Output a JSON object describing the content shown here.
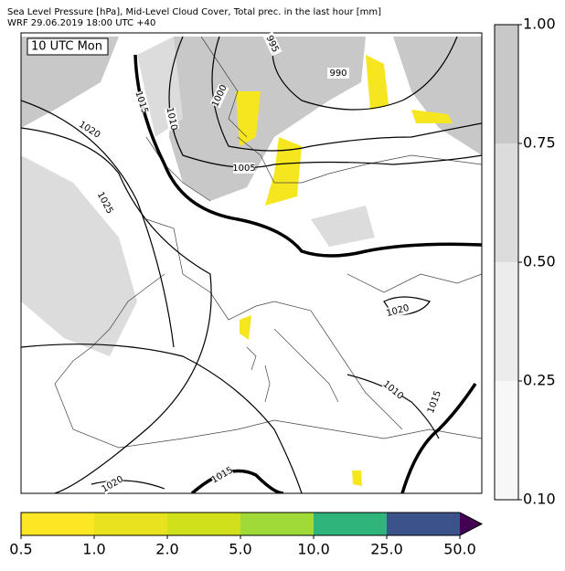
{
  "header": {
    "line1": "Sea Level Pressure [hPa], Mid-Level Cloud Cover, Total prec. in the last hour [mm]",
    "line2": "WRF 29.06.2019 18:00 UTC +40"
  },
  "map": {
    "time_label": "10 UTC Mon",
    "contour_labels": [
      "995",
      "990",
      "1000",
      "1015",
      "1010",
      "1020",
      "1005",
      "1025",
      "1020",
      "1015",
      "1010",
      "1020",
      "1015"
    ]
  },
  "cloud_colorbar": {
    "labels": [
      "1.00",
      "0.75",
      "0.50",
      "0.25",
      "0.10"
    ]
  },
  "precip_colorbar": {
    "labels": [
      "0.5",
      "1.0",
      "2.0",
      "5.0",
      "10.0",
      "25.0",
      "50.0"
    ]
  }
}
